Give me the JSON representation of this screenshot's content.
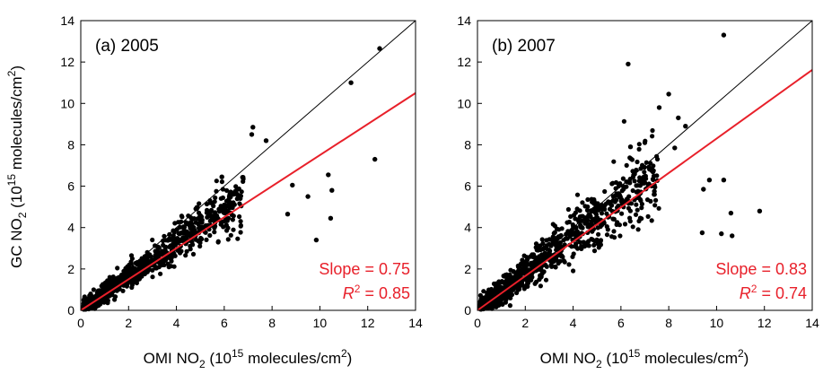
{
  "figure": {
    "ylabel": {
      "pre": "GC NO",
      "sub": "2",
      "mid": " (10",
      "sup": "15",
      "post": " molecules/cm",
      "sup2": "2",
      "close": ")"
    },
    "xlabel": {
      "pre": "OMI NO",
      "sub": "2",
      "mid": " (10",
      "sup": "15",
      "post": " molecules/cm",
      "sup2": "2",
      "close": ")"
    }
  },
  "colors": {
    "points": "#000000",
    "fit_line": "#e8202a",
    "one_to_one": "#000000",
    "axis": "#000000"
  },
  "chart_data": [
    {
      "type": "scatter",
      "panel_label": "(a) 2005",
      "xlim": [
        0,
        14
      ],
      "ylim": [
        0,
        14
      ],
      "xticks": [
        0,
        2,
        4,
        6,
        8,
        10,
        12,
        14
      ],
      "yticks": [
        0,
        2,
        4,
        6,
        8,
        10,
        12,
        14
      ],
      "tick_labels": [
        "0",
        "2",
        "4",
        "6",
        "8",
        "10",
        "12",
        "14"
      ],
      "one_to_one_line": true,
      "fit": {
        "slope": 0.75,
        "intercept": 0.0,
        "slope_text": "Slope = 0.75",
        "r2_label": "R",
        "r2_sup": "2",
        "r2_value_text": " = 0.85"
      },
      "highlight_points": [
        [
          12.5,
          12.65
        ],
        [
          11.3,
          11.0
        ],
        [
          12.3,
          7.3
        ],
        [
          7.2,
          8.85
        ],
        [
          7.15,
          8.5
        ],
        [
          7.75,
          8.2
        ],
        [
          10.35,
          6.55
        ],
        [
          10.5,
          5.8
        ],
        [
          10.45,
          4.45
        ],
        [
          9.85,
          3.4
        ],
        [
          9.5,
          5.5
        ],
        [
          8.65,
          4.65
        ],
        [
          8.85,
          6.05
        ],
        [
          5.9,
          6.45
        ]
      ],
      "cloud": {
        "count": 950,
        "seed": 11,
        "x_max": 6.8,
        "slope": 0.82,
        "spread": 0.38
      }
    },
    {
      "type": "scatter",
      "panel_label": "(b) 2007",
      "xlim": [
        0,
        14
      ],
      "ylim": [
        0,
        14
      ],
      "xticks": [
        0,
        2,
        4,
        6,
        8,
        10,
        12,
        14
      ],
      "yticks": [
        0,
        2,
        4,
        6,
        8,
        10,
        12,
        14
      ],
      "tick_labels": [
        "0",
        "2",
        "4",
        "6",
        "8",
        "10",
        "12",
        "14"
      ],
      "one_to_one_line": true,
      "fit": {
        "slope": 0.83,
        "intercept": 0.0,
        "slope_text": "Slope = 0.83",
        "r2_label": "R",
        "r2_sup": "2",
        "r2_value_text": " = 0.74"
      },
      "highlight_points": [
        [
          10.3,
          13.3
        ],
        [
          6.3,
          11.9
        ],
        [
          8.0,
          10.45
        ],
        [
          7.6,
          9.8
        ],
        [
          8.4,
          9.3
        ],
        [
          8.7,
          8.9
        ],
        [
          6.4,
          7.9
        ],
        [
          8.25,
          7.85
        ],
        [
          9.7,
          6.3
        ],
        [
          10.3,
          6.3
        ],
        [
          9.45,
          5.85
        ],
        [
          10.6,
          4.7
        ],
        [
          11.8,
          4.8
        ],
        [
          10.2,
          3.7
        ],
        [
          10.65,
          3.6
        ],
        [
          9.4,
          3.75
        ]
      ],
      "cloud": {
        "count": 950,
        "seed": 29,
        "x_max": 7.6,
        "slope": 0.9,
        "spread": 0.5
      }
    }
  ]
}
